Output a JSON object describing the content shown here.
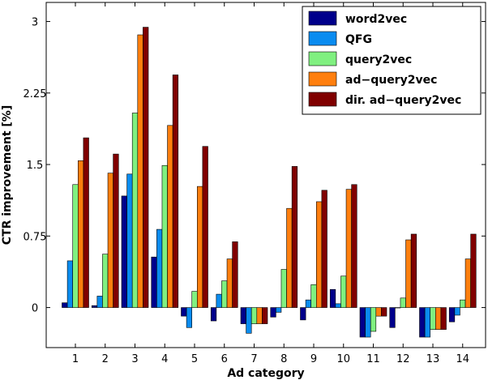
{
  "chart_data": {
    "type": "bar",
    "xlabel": "Ad category",
    "ylabel": "CTR improvement [%]",
    "categories": [
      "1",
      "2",
      "3",
      "4",
      "5",
      "6",
      "7",
      "8",
      "9",
      "10",
      "11",
      "12",
      "13",
      "14"
    ],
    "ylim": [
      -0.42,
      3.2
    ],
    "yticks": [
      0,
      0.75,
      1.5,
      2.25,
      3
    ],
    "ytick_labels": [
      "0",
      "0.75",
      "1.5",
      "2.25",
      "3"
    ],
    "legend_position": "top-right",
    "grid": false,
    "series": [
      {
        "name": "word2vec",
        "color": "#00008b",
        "values": [
          0.05,
          0.02,
          1.17,
          0.53,
          -0.09,
          -0.14,
          -0.17,
          -0.1,
          -0.13,
          0.19,
          -0.31,
          -0.21,
          -0.31,
          -0.15
        ]
      },
      {
        "name": "QFG",
        "color": "#0a8cf0",
        "values": [
          0.49,
          0.12,
          1.4,
          0.82,
          -0.21,
          0.14,
          -0.27,
          -0.05,
          0.08,
          0.04,
          -0.31,
          0.0,
          -0.31,
          -0.08
        ]
      },
      {
        "name": "query2vec",
        "color": "#80f080",
        "values": [
          1.29,
          0.56,
          2.04,
          1.49,
          0.17,
          0.28,
          -0.17,
          0.4,
          0.24,
          0.33,
          -0.25,
          0.1,
          -0.23,
          0.08
        ]
      },
      {
        "name": "ad−query2vec",
        "color": "#ff7f0e",
        "values": [
          1.54,
          1.41,
          2.86,
          1.91,
          1.27,
          0.51,
          -0.17,
          1.04,
          1.11,
          1.24,
          -0.09,
          0.71,
          -0.23,
          0.51
        ]
      },
      {
        "name": "dir. ad−query2vec",
        "color": "#800000",
        "values": [
          1.78,
          1.61,
          2.94,
          2.44,
          1.69,
          0.69,
          -0.17,
          1.48,
          1.23,
          1.29,
          -0.09,
          0.77,
          -0.23,
          0.77
        ]
      }
    ]
  }
}
